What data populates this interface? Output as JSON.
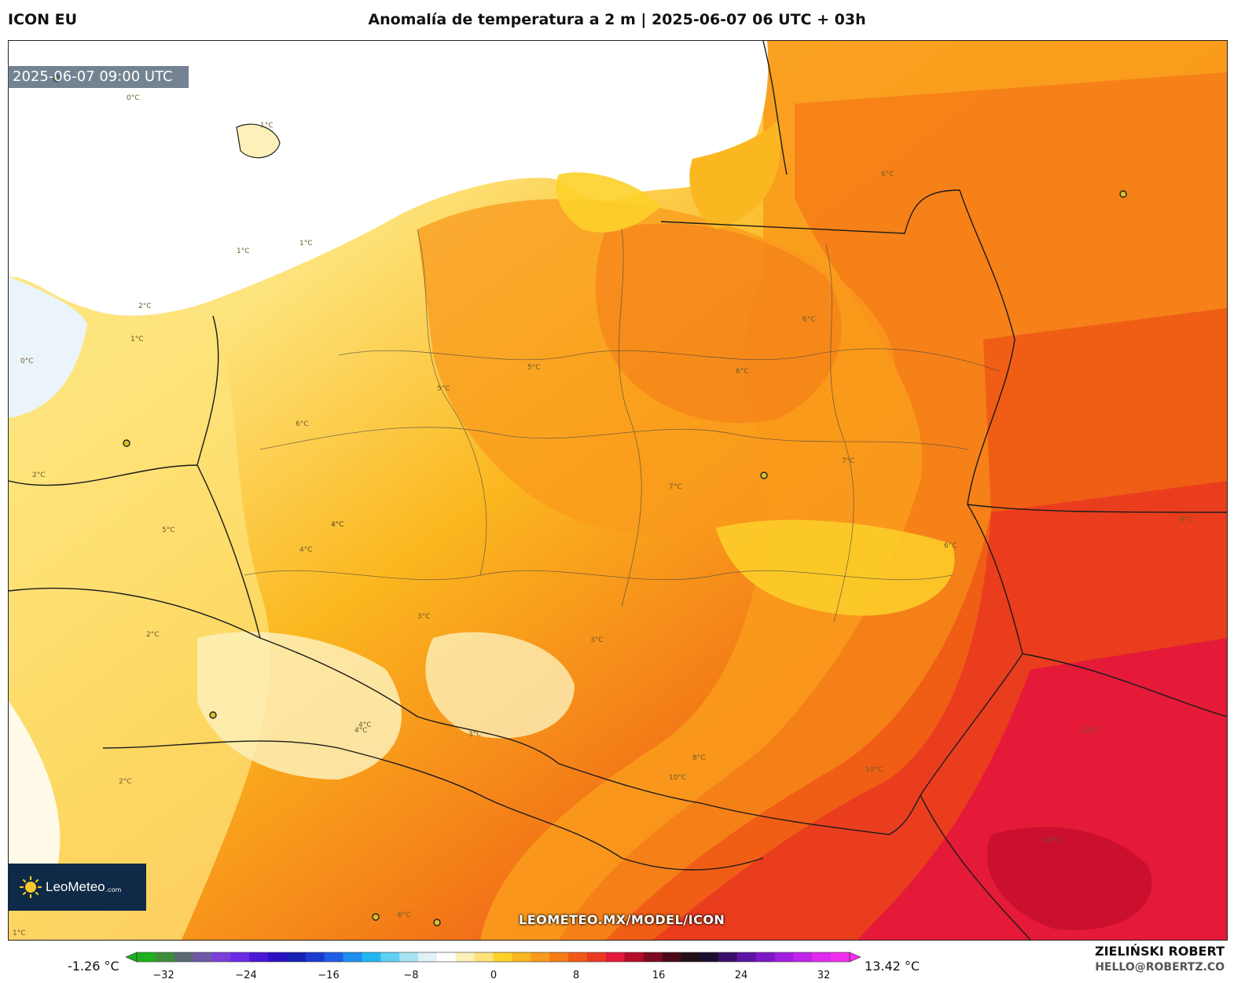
{
  "header": {
    "model": "ICON EU",
    "title": "Anomalía de temperatura a 2 m | 2025-06-07 06 UTC + 03h"
  },
  "map": {
    "valid_time": "2025-06-07 09:00 UTC",
    "watermark_url": "LEOMETEO.MX/MODEL/ICON",
    "isoline_labels": [
      "0°C",
      "1°C",
      "1°C",
      "2°C",
      "1°C",
      "0°C",
      "1°C",
      "2°C",
      "3°C",
      "4°C",
      "5°C",
      "5°C",
      "6°C",
      "6°C",
      "6°C",
      "7°C",
      "7°C",
      "6°C",
      "5°C",
      "4°C",
      "4°C",
      "2°C",
      "3°C",
      "2°C",
      "3°C",
      "4°C",
      "8°C",
      "10°C",
      "10°C",
      "11°C",
      "12°C",
      "9°C",
      "6°C",
      "6°C",
      "4°C",
      "1°C"
    ],
    "colors": {
      "ocean": "#ffffff",
      "light_anomaly": "#fdf0b8",
      "anomaly_2": "#fde37a",
      "anomaly_4": "#fdd02a",
      "anomaly_5": "#fbb71f",
      "anomaly_6": "#f99a1c",
      "anomaly_7": "#f47d18",
      "anomaly_8": "#ef5a16",
      "anomaly_10": "#e93a1f",
      "anomaly_12": "#e4183a",
      "anomaly_13": "#c80f2f"
    }
  },
  "logo": {
    "name": "LeoMeteo",
    "domain": ".com"
  },
  "colorbar": {
    "min_label": "-1.26 °C",
    "max_label": "13.42 °C",
    "ticks": [
      "−32",
      "−24",
      "−16",
      "−8",
      "0",
      "8",
      "16",
      "24",
      "32"
    ],
    "colors": [
      "#1fb01f",
      "#3d8e3a",
      "#5b6a70",
      "#6f59a7",
      "#7b3fd9",
      "#6a2ae6",
      "#4a17d8",
      "#2a10c4",
      "#1520b4",
      "#1a3ad0",
      "#1f5ee6",
      "#1f8ef0",
      "#21b6f2",
      "#5fd0f2",
      "#a6e4f3",
      "#dff2f7",
      "#ffffff",
      "#fdf0b8",
      "#fde37a",
      "#fdd02a",
      "#fbb71f",
      "#f99a1c",
      "#f47d18",
      "#ef5a16",
      "#e93a1f",
      "#e4183a",
      "#b50d28",
      "#7e0a1f",
      "#4b0a1a",
      "#231016",
      "#1b0e2e",
      "#3a0f6b",
      "#5b14a0",
      "#7c18c6",
      "#a01ee0",
      "#c024e8",
      "#e02aee",
      "#f22ff0"
    ]
  },
  "author": {
    "name": "ZIELIŃSKI ROBERT",
    "email": "HELLO@ROBERTZ.CO"
  }
}
